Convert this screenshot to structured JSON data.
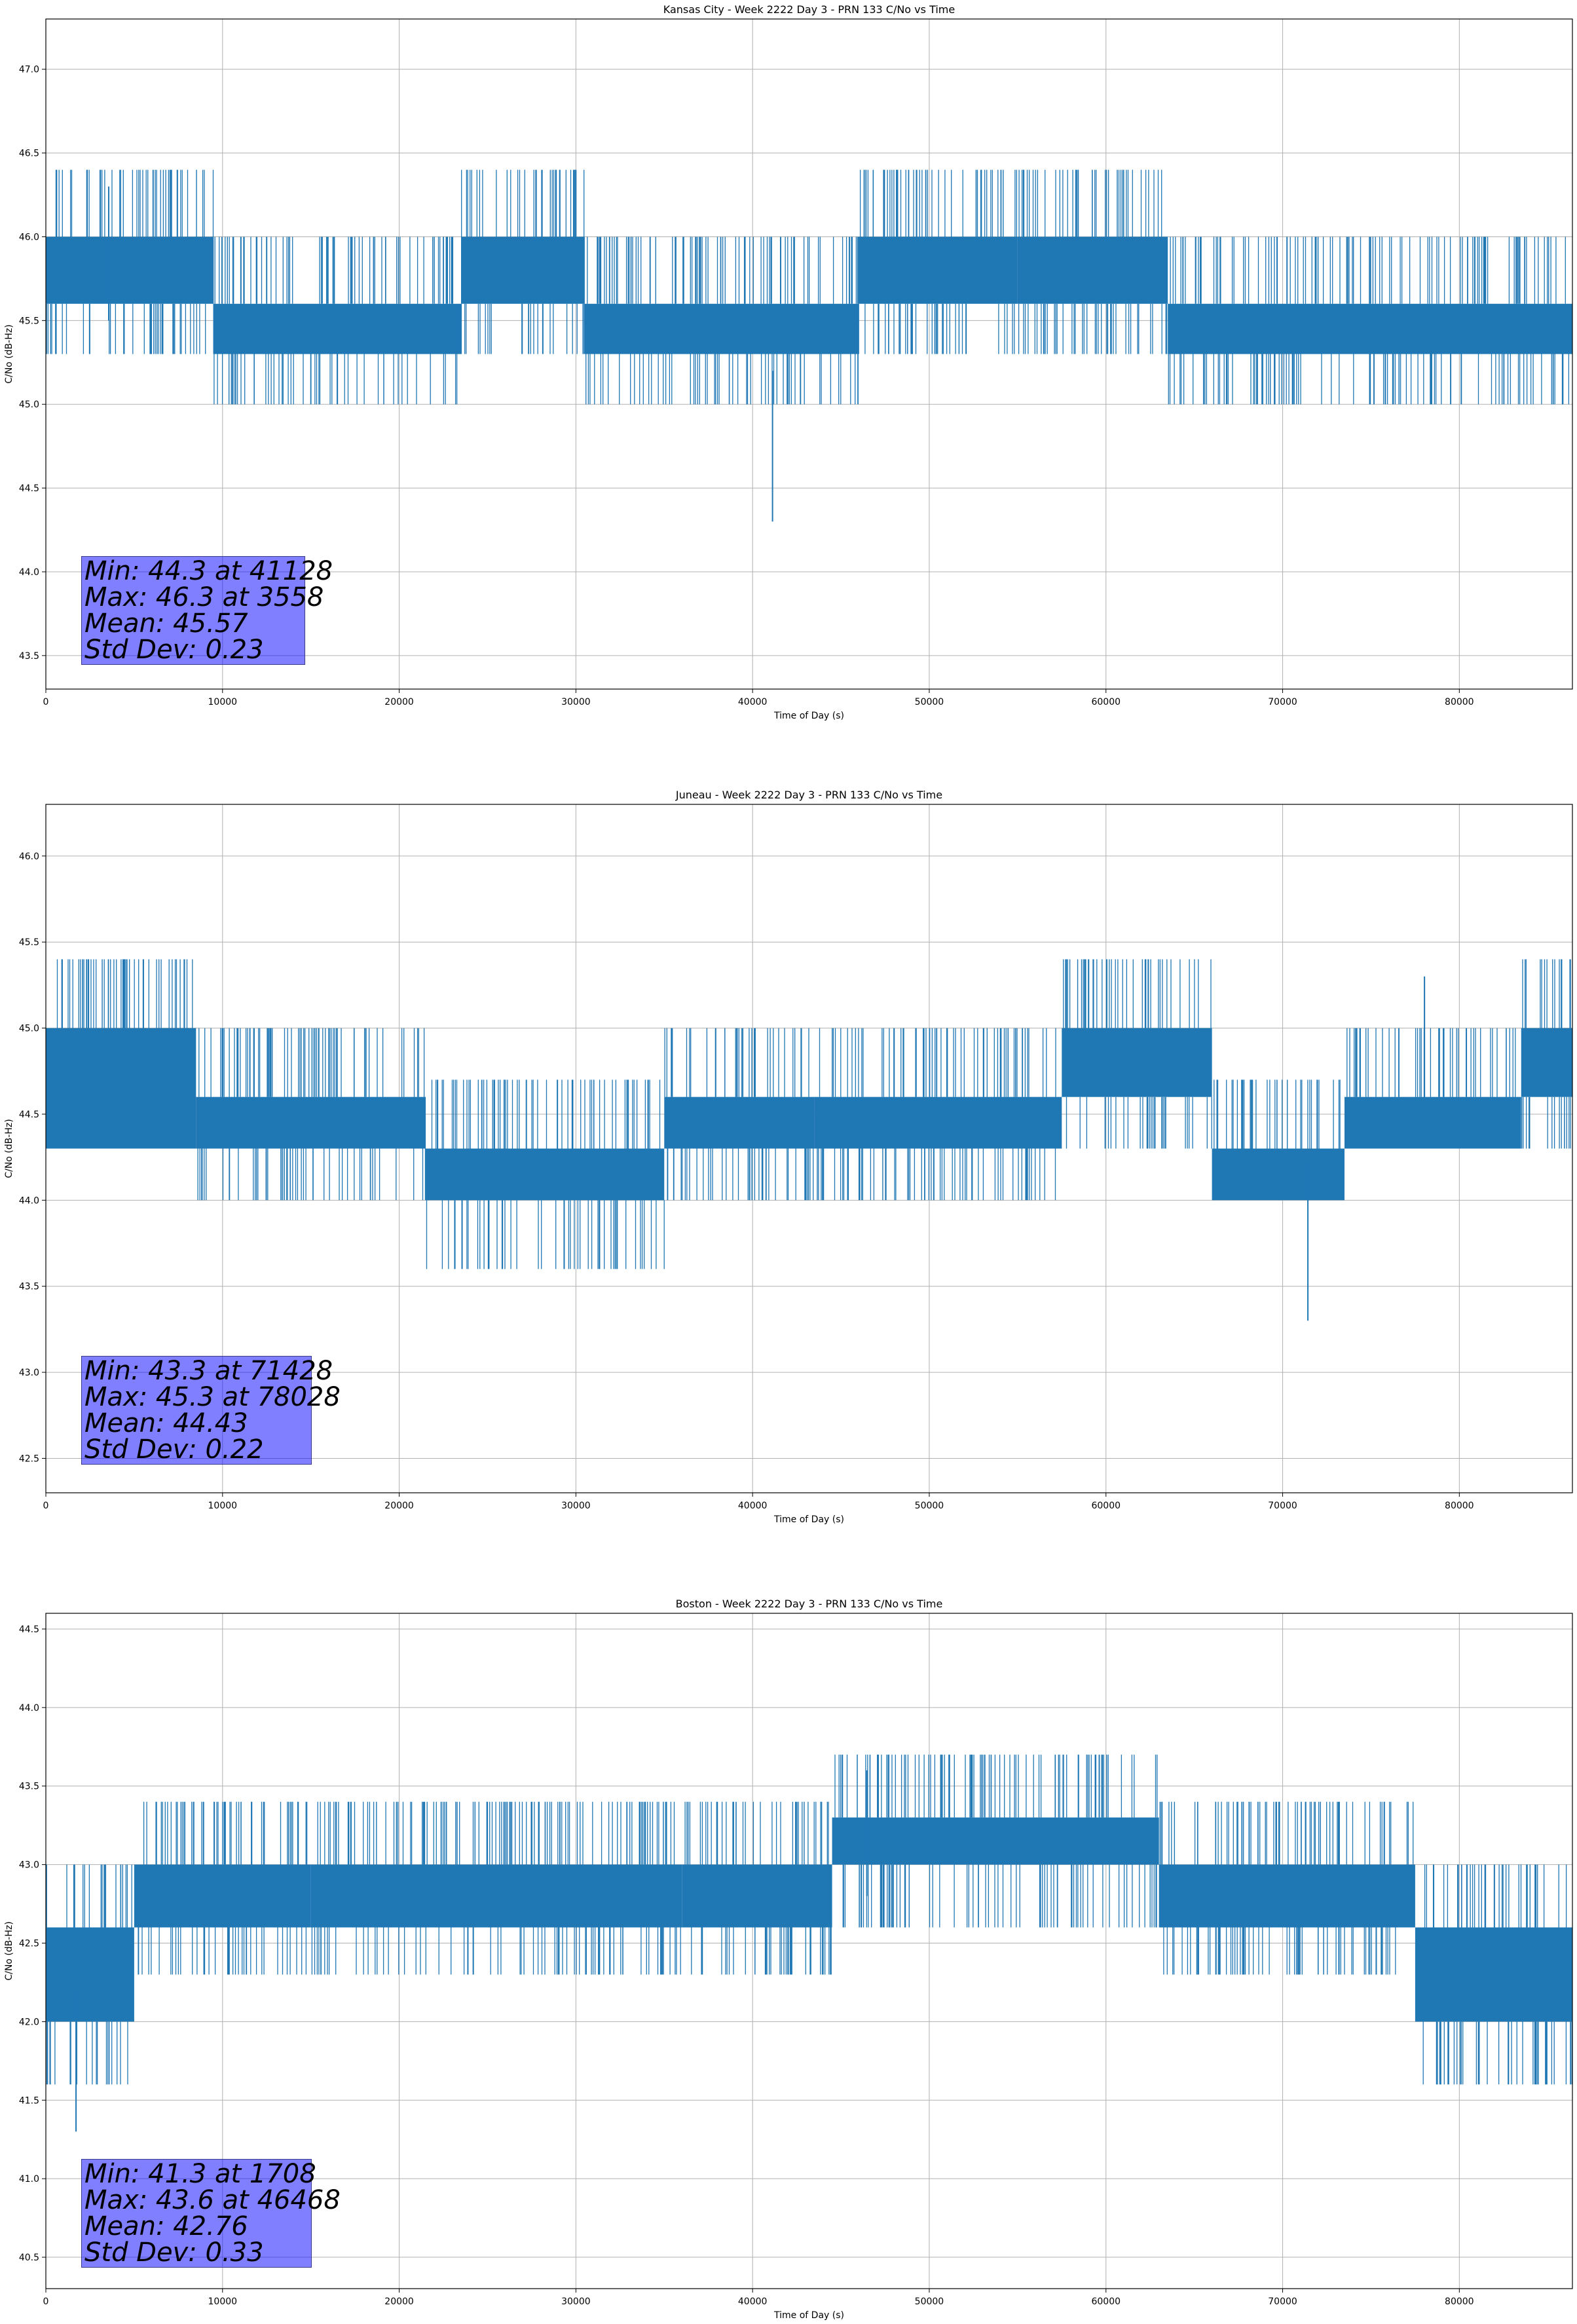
{
  "chart_data": [
    {
      "type": "line",
      "title": "Kansas City - Week 2222 Day 3 - PRN 133 C/No vs Time",
      "xlabel": "Time of Day (s)",
      "ylabel": "C/No (dB-Hz)",
      "xlim": [
        0,
        86400
      ],
      "ylim": [
        43.3,
        47.3
      ],
      "xticks": [
        "0",
        "10000",
        "20000",
        "30000",
        "40000",
        "50000",
        "60000",
        "70000",
        "80000"
      ],
      "yticks": [
        "43.5",
        "44.0",
        "44.5",
        "45.0",
        "45.5",
        "46.0",
        "46.5",
        "47.0"
      ],
      "grid": true,
      "series": [
        {
          "color": "#1f77b4"
        }
      ],
      "bands": [
        {
          "x0": 0,
          "x1": 9500,
          "low": 45.6,
          "high": 46.0,
          "dip": 45.3
        },
        {
          "x0": 9500,
          "x1": 23500,
          "low": 45.3,
          "high": 45.6,
          "dip": 45.0
        },
        {
          "x0": 23500,
          "x1": 30500,
          "low": 45.6,
          "high": 46.0,
          "dip": 45.3
        },
        {
          "x0": 30500,
          "x1": 46000,
          "low": 45.3,
          "high": 45.6,
          "dip": 45.0
        },
        {
          "x0": 46000,
          "x1": 55000,
          "low": 45.6,
          "high": 46.0,
          "dip": 45.3
        },
        {
          "x0": 55000,
          "x1": 63500,
          "low": 45.6,
          "high": 46.0,
          "dip": 45.3
        },
        {
          "x0": 63500,
          "x1": 86400,
          "low": 45.3,
          "high": 45.6,
          "dip": 45.0
        }
      ],
      "min": {
        "value": 44.3,
        "x": 41128
      },
      "max": {
        "value": 46.3,
        "x": 3558
      },
      "stats": [
        "Min: 44.3 at 41128",
        "Max: 46.3 at 3558",
        "Mean: 45.57",
        "Std Dev: 0.23"
      ]
    },
    {
      "type": "line",
      "title": "Juneau - Week 2222 Day 3 - PRN 133 C/No vs Time",
      "xlabel": "Time of Day (s)",
      "ylabel": "C/No (dB-Hz)",
      "xlim": [
        0,
        86400
      ],
      "ylim": [
        42.3,
        46.3
      ],
      "xticks": [
        "0",
        "10000",
        "20000",
        "30000",
        "40000",
        "50000",
        "60000",
        "70000",
        "80000"
      ],
      "yticks": [
        "42.5",
        "43.0",
        "43.5",
        "44.0",
        "44.5",
        "45.0",
        "45.5",
        "46.0"
      ],
      "grid": true,
      "series": [
        {
          "color": "#1f77b4"
        }
      ],
      "bands": [
        {
          "x0": 0,
          "x1": 8500,
          "low": 44.3,
          "high": 45.0,
          "dip": 44.3
        },
        {
          "x0": 8500,
          "x1": 21500,
          "low": 44.3,
          "high": 44.6,
          "dip": 44.0
        },
        {
          "x0": 21500,
          "x1": 35000,
          "low": 44.0,
          "high": 44.3,
          "dip": 43.6
        },
        {
          "x0": 35000,
          "x1": 43500,
          "low": 44.3,
          "high": 44.6,
          "dip": 44.0
        },
        {
          "x0": 43500,
          "x1": 57500,
          "low": 44.3,
          "high": 44.6,
          "dip": 44.0
        },
        {
          "x0": 57500,
          "x1": 66000,
          "low": 44.6,
          "high": 45.0,
          "dip": 44.3
        },
        {
          "x0": 66000,
          "x1": 73500,
          "low": 44.0,
          "high": 44.3,
          "dip": 44.0
        },
        {
          "x0": 73500,
          "x1": 83500,
          "low": 44.3,
          "high": 44.6,
          "dip": 44.3
        },
        {
          "x0": 83500,
          "x1": 86400,
          "low": 44.6,
          "high": 45.0,
          "dip": 44.3
        }
      ],
      "min": {
        "value": 43.3,
        "x": 71428
      },
      "max": {
        "value": 45.3,
        "x": 78028
      },
      "stats": [
        "Min: 43.3 at 71428",
        "Max: 45.3 at 78028",
        "Mean: 44.43",
        "Std Dev: 0.22"
      ]
    },
    {
      "type": "line",
      "title": "Boston - Week 2222 Day 3 - PRN 133 C/No vs Time",
      "xlabel": "Time of Day (s)",
      "ylabel": "C/No (dB-Hz)",
      "xlim": [
        0,
        86400
      ],
      "ylim": [
        40.3,
        44.6
      ],
      "xticks": [
        "0",
        "10000",
        "20000",
        "30000",
        "40000",
        "50000",
        "60000",
        "70000",
        "80000"
      ],
      "yticks": [
        "40.5",
        "41.0",
        "41.5",
        "42.0",
        "42.5",
        "43.0",
        "43.5",
        "44.0",
        "44.5"
      ],
      "grid": true,
      "series": [
        {
          "color": "#1f77b4"
        }
      ],
      "bands": [
        {
          "x0": 0,
          "x1": 5000,
          "low": 42.0,
          "high": 42.6,
          "dip": 41.6
        },
        {
          "x0": 5000,
          "x1": 15000,
          "low": 42.6,
          "high": 43.0,
          "dip": 42.3
        },
        {
          "x0": 15000,
          "x1": 36000,
          "low": 42.6,
          "high": 43.0,
          "dip": 42.3
        },
        {
          "x0": 36000,
          "x1": 44500,
          "low": 42.6,
          "high": 43.0,
          "dip": 42.3
        },
        {
          "x0": 44500,
          "x1": 63000,
          "low": 43.0,
          "high": 43.3,
          "dip": 42.6
        },
        {
          "x0": 63000,
          "x1": 77500,
          "low": 42.6,
          "high": 43.0,
          "dip": 42.3
        },
        {
          "x0": 77500,
          "x1": 86400,
          "low": 42.0,
          "high": 42.6,
          "dip": 41.6
        }
      ],
      "min": {
        "value": 41.3,
        "x": 1708
      },
      "max": {
        "value": 43.6,
        "x": 46468
      },
      "stats": [
        "Min: 41.3 at 1708",
        "Max: 43.6 at 46468",
        "Mean: 42.76",
        "Std Dev: 0.33"
      ]
    }
  ]
}
